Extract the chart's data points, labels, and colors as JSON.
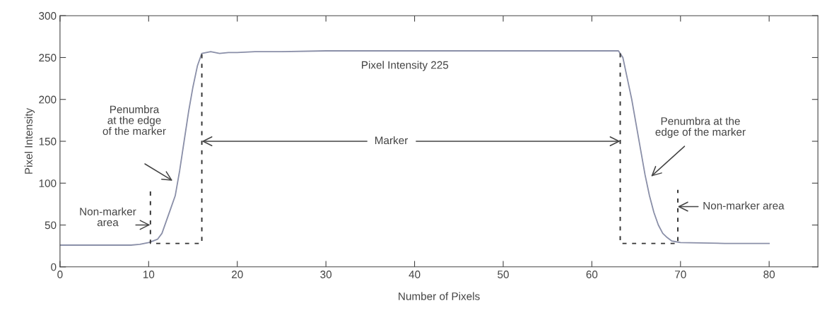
{
  "chart_data": {
    "type": "line",
    "xlabel": "Number of Pixels",
    "ylabel": "Pixel Intensity",
    "xlim": [
      0,
      85.5
    ],
    "xticks": [
      0,
      10,
      20,
      30,
      40,
      50,
      60,
      70,
      80
    ],
    "ylim": [
      0,
      300
    ],
    "yticks": [
      0,
      50,
      100,
      150,
      200,
      250,
      300
    ],
    "grid": false,
    "series": [
      {
        "color": "#8a8fa8",
        "line_style": "solid",
        "x": [
          0,
          2,
          4,
          6,
          8,
          9,
          10,
          10.5,
          11,
          11.5,
          12,
          12.5,
          13,
          13.5,
          14,
          14.5,
          15,
          15.5,
          16,
          17,
          18,
          19,
          20,
          22,
          25,
          30,
          40,
          50,
          60,
          63,
          63.5,
          64,
          64.5,
          65,
          65.5,
          66,
          66.5,
          67,
          67.5,
          68,
          68.5,
          69,
          69.5,
          70,
          75,
          80
        ],
        "values": [
          26,
          26,
          26,
          26,
          26,
          27,
          29,
          31,
          33,
          40,
          55,
          70,
          85,
          115,
          150,
          185,
          215,
          240,
          255,
          257,
          255,
          256,
          256,
          257,
          257,
          258,
          258,
          258,
          258,
          258,
          250,
          225,
          200,
          170,
          140,
          110,
          85,
          65,
          50,
          40,
          35,
          31,
          30,
          29,
          28,
          28
        ]
      },
      {
        "color": "#333333",
        "line_style": "dashed",
        "x": [
          10.2,
          10.2,
          16,
          16
        ],
        "values": [
          90,
          28,
          28,
          255
        ]
      },
      {
        "color": "#333333",
        "line_style": "dashed",
        "x": [
          63.2,
          63.2,
          69.7,
          69.7
        ],
        "values": [
          255,
          28,
          28,
          92
        ]
      }
    ],
    "annotations": [
      "Pixel Intensity 225",
      {
        "text": "Marker",
        "x": 16,
        "y": 150
      },
      "Penumbra\nat the edge\nof the marker",
      "Non-marker\narea",
      "Penumbra at the\nedge of the marker",
      "Non-marker area"
    ]
  }
}
